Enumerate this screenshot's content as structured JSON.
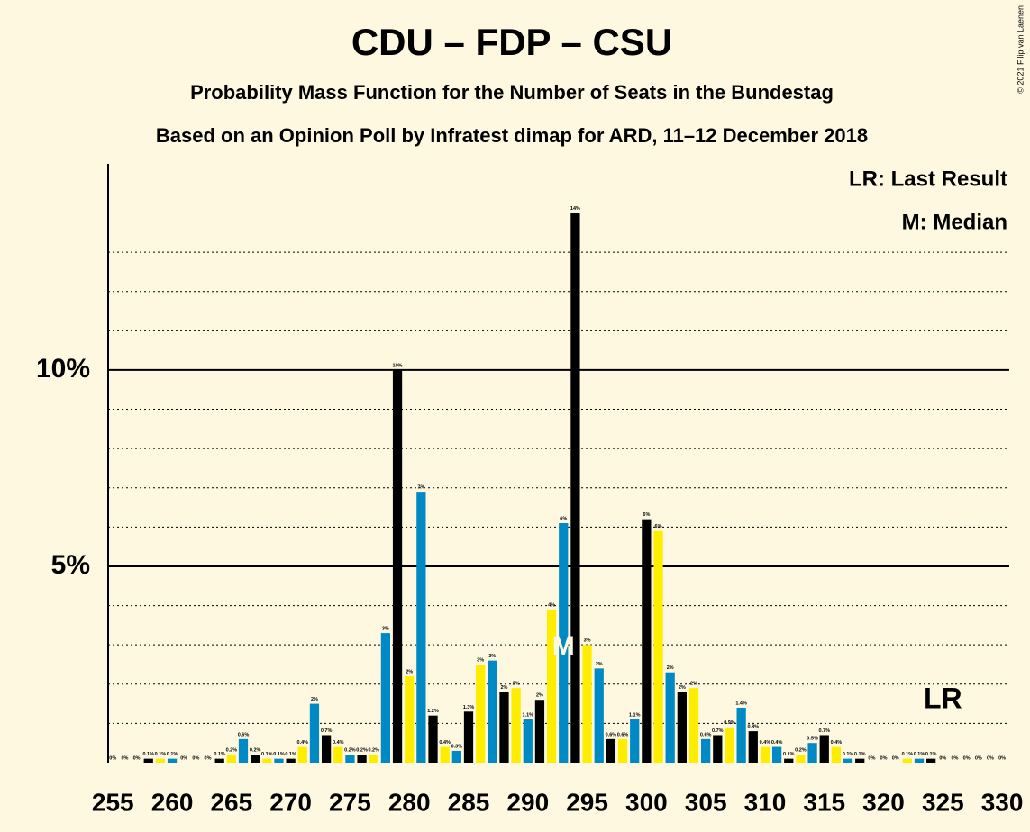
{
  "chart_data": {
    "type": "bar",
    "title": "CDU – FDP – CSU",
    "subtitles": [
      "Probability Mass Function for the Number of Seats in the Bundestag",
      "Based on an Opinion Poll by Infratest dimap for ARD, 11–12 December 2018"
    ],
    "copyright": "© 2021 Filip van Laenen",
    "legend_notes": [
      "LR: Last Result",
      "M: Median"
    ],
    "annotations": [
      {
        "text": "M",
        "x": 293
      },
      {
        "text": "LR",
        "x": 325
      }
    ],
    "colors": [
      "#000000",
      "#ffed00",
      "#008ac5"
    ],
    "x": [
      255,
      256,
      257,
      258,
      259,
      260,
      261,
      262,
      263,
      264,
      265,
      266,
      267,
      268,
      269,
      270,
      271,
      272,
      273,
      274,
      275,
      276,
      277,
      278,
      279,
      280,
      281,
      282,
      283,
      284,
      285,
      286,
      287,
      288,
      289,
      290,
      291,
      292,
      293,
      294,
      295,
      296,
      297,
      298,
      299,
      300,
      301,
      302,
      303,
      304,
      305,
      306,
      307,
      308,
      309,
      310,
      311,
      312,
      313,
      314,
      315,
      316,
      317,
      318,
      319,
      320,
      321,
      322,
      323,
      324,
      325,
      326,
      327,
      328,
      329,
      330
    ],
    "values": [
      0,
      0,
      0,
      0.1,
      0.1,
      0.1,
      0,
      0,
      0,
      0.1,
      0.2,
      0.6,
      0.2,
      0.1,
      0.1,
      0.1,
      0.4,
      1.5,
      0.7,
      0.4,
      0.2,
      0.2,
      0.2,
      3.3,
      10,
      2.2,
      6.9,
      1.2,
      0.4,
      0.3,
      1.3,
      2.5,
      2.6,
      1.8,
      1.9,
      1.1,
      1.6,
      3.9,
      6.1,
      14,
      3,
      2.4,
      0.6,
      0.6,
      1.1,
      6.2,
      5.9,
      2.3,
      1.8,
      1.9,
      0.6,
      0.7,
      0.9,
      1.4,
      0.8,
      0.4,
      0.4,
      0.1,
      0.2,
      0.5,
      0.7,
      0.4,
      0.1,
      0.1,
      0,
      0,
      0,
      0.1,
      0.1,
      0.1,
      0,
      0,
      0,
      0,
      0,
      0
    ],
    "value_labels": [
      "0%",
      "0%",
      "0%",
      "0.1%",
      "0.1%",
      "0.1%",
      "0%",
      "0%",
      "0%",
      "0.1%",
      "0.2%",
      "0.6%",
      "0.2%",
      "0.1%",
      "0.1%",
      "0.1%",
      "0.4%",
      "2%",
      "0.7%",
      "0.4%",
      "0.2%",
      "0.2%",
      "0.2%",
      "3%",
      "10%",
      "2%",
      "7%",
      "1.2%",
      "0.4%",
      "0.3%",
      "1.3%",
      "3%",
      "3%",
      "2%",
      "2%",
      "1.1%",
      "2%",
      "4%",
      "6%",
      "14%",
      "3%",
      "2%",
      "0.6%",
      "0.6%",
      "1.1%",
      "6%",
      "6%",
      "2%",
      "2%",
      "2%",
      "0.6%",
      "0.7%",
      "0.9%",
      "1.4%",
      "0.8%",
      "0.4%",
      "0.4%",
      "0.1%",
      "0.2%",
      "0.5%",
      "0.7%",
      "0.4%",
      "0.1%",
      "0.1%",
      "0%",
      "0%",
      "0%",
      "0.1%",
      "0.1%",
      "0.1%",
      "0%",
      "0%",
      "0%",
      "0%",
      "0%",
      "0%"
    ],
    "xlim": [
      254.6,
      330.6
    ],
    "xticks": [
      255,
      260,
      265,
      270,
      275,
      280,
      285,
      290,
      295,
      300,
      305,
      310,
      315,
      320,
      325,
      330
    ],
    "ylim": [
      0,
      15.25
    ],
    "yticks": [
      {
        "value": 5,
        "label": "5%"
      },
      {
        "value": 10,
        "label": "10%"
      }
    ],
    "minor_yticks": [
      1,
      2,
      3,
      4,
      6,
      7,
      8,
      9,
      11,
      12,
      13,
      14
    ],
    "grid": true
  }
}
